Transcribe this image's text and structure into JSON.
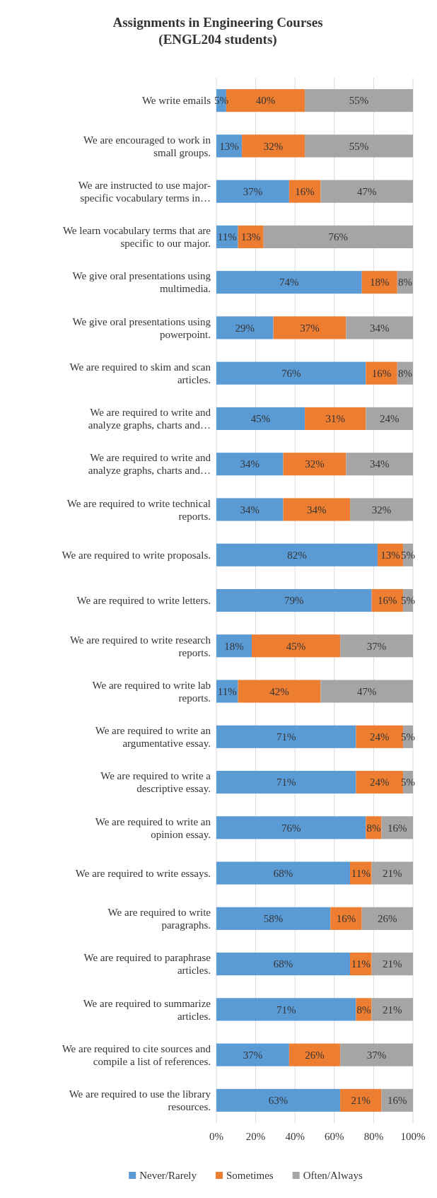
{
  "chart_data": {
    "type": "bar",
    "orientation": "horizontal",
    "stacked": true,
    "title": "Assignments in Engineering Courses\n(ENGL204 students)",
    "categories": [
      "We write emails",
      "We are encouraged to work in small groups.",
      "We are instructed to use major-specific vocabulary terms in…",
      "We learn vocabulary terms that are specific to our major.",
      "We give oral presentations using multimedia.",
      "We give oral presentations using powerpoint.",
      "We are required to skim and scan articles.",
      "We are required to write and analyze graphs, charts and…",
      "We are required to write and analyze graphs, charts and…",
      "We are required to write technical reports.",
      "We are required to write proposals.",
      "We are required to write letters.",
      "We are required to write research reports.",
      "We are required to write lab reports.",
      "We are required to write an argumentative essay.",
      "We are required to write a descriptive essay.",
      "We are required to write an opinion essay.",
      "We are required to write essays.",
      "We are required to write paragraphs.",
      "We are required to paraphrase articles.",
      "We are required to summarize articles.",
      "We are required to cite sources and compile a list of references.",
      "We are required to use the library resources."
    ],
    "series": [
      {
        "name": "Never/Rarely",
        "color": "#5b9bd5",
        "values": [
          5,
          13,
          37,
          11,
          74,
          29,
          76,
          45,
          34,
          34,
          82,
          79,
          18,
          11,
          71,
          71,
          76,
          68,
          58,
          68,
          71,
          37,
          63
        ],
        "value_labels": [
          "5%",
          "13%",
          "37%",
          "11%",
          "74%",
          "29%",
          "76%",
          "45%",
          "34%",
          "34%",
          "82%",
          "79%",
          "18%",
          "11%",
          "71%",
          "71%",
          "76%",
          "68%",
          "58%",
          "68%",
          "71%",
          "37%",
          "63%"
        ]
      },
      {
        "name": "Sometimes",
        "color": "#ed7d31",
        "values": [
          40,
          32,
          16,
          13,
          18,
          37,
          16,
          31,
          32,
          34,
          13,
          16,
          45,
          42,
          24,
          24,
          8,
          11,
          16,
          11,
          8,
          26,
          21
        ],
        "value_labels": [
          "40%",
          "32%",
          "16%",
          "13%",
          "18%",
          "37%",
          "16%",
          "31%",
          "32%",
          "34%",
          "13%",
          "16%",
          "45%",
          "42%",
          "24%",
          "24%",
          "8%",
          "11%",
          "16%",
          "11%",
          "8%",
          "26%",
          "21%"
        ]
      },
      {
        "name": "Often/Always",
        "color": "#a5a5a5",
        "values": [
          55,
          55,
          47,
          76,
          8,
          34,
          8,
          24,
          34,
          32,
          5,
          5,
          37,
          47,
          5,
          5,
          16,
          21,
          26,
          21,
          21,
          37,
          16
        ],
        "value_labels": [
          "55%",
          "55%",
          "47%",
          "76%",
          "8%",
          "34%",
          "8%",
          "24%",
          "34%",
          "32%",
          "5%",
          "5%",
          "37%",
          "47%",
          "5%",
          "5%",
          "16%",
          "21%",
          "26%",
          "21%",
          "21%",
          "37%",
          "16%"
        ]
      }
    ],
    "xlim": [
      0,
      100
    ],
    "xticks": [
      {
        "value": 0,
        "label": "0%"
      },
      {
        "value": 20,
        "label": "20%"
      },
      {
        "value": 40,
        "label": "40%"
      },
      {
        "value": 60,
        "label": "60%"
      },
      {
        "value": 80,
        "label": "80%"
      },
      {
        "value": 100,
        "label": "100%"
      }
    ],
    "grid": "x",
    "legend": "bottom"
  }
}
